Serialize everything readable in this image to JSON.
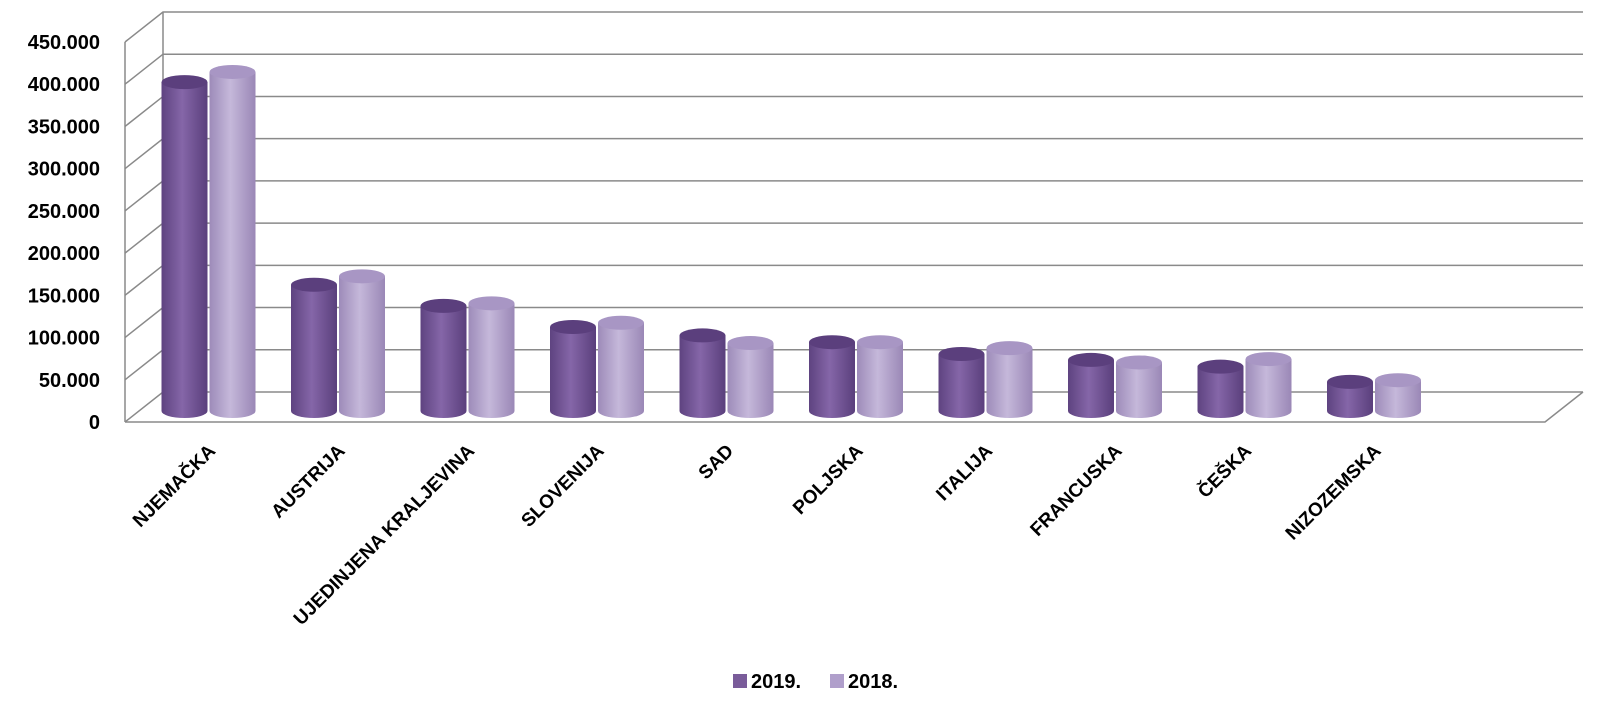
{
  "chart_data": {
    "type": "bar",
    "title": "",
    "xlabel": "",
    "ylabel": "",
    "ylim": [
      0,
      450000
    ],
    "yticks": [
      0,
      50000,
      100000,
      150000,
      200000,
      250000,
      300000,
      350000,
      400000,
      450000
    ],
    "ytick_labels": [
      "0",
      "50.000",
      "100.000",
      "150.000",
      "200.000",
      "250.000",
      "300.000",
      "350.000",
      "400.000",
      "450.000"
    ],
    "grid": true,
    "style": "3d-cylinder",
    "legend_position": "bottom",
    "categories": [
      "NJEMAČKA",
      "AUSTRIJA",
      "UJEDINJENA KRALJEVINA",
      "SLOVENIJA",
      "SAD",
      "POLJSKA",
      "ITALIJA",
      "FRANCUSKA",
      "ČEŠKA",
      "NIZOZEMSKA"
    ],
    "series": [
      {
        "name": "2019.",
        "color": "#7a5c9a",
        "values": [
          405000,
          165000,
          140000,
          115000,
          105000,
          97000,
          83000,
          76000,
          68000,
          50000
        ]
      },
      {
        "name": "2018.",
        "color": "#b09fcb",
        "values": [
          417000,
          175000,
          143000,
          120000,
          96000,
          97000,
          90000,
          73000,
          77000,
          52000
        ]
      }
    ]
  }
}
